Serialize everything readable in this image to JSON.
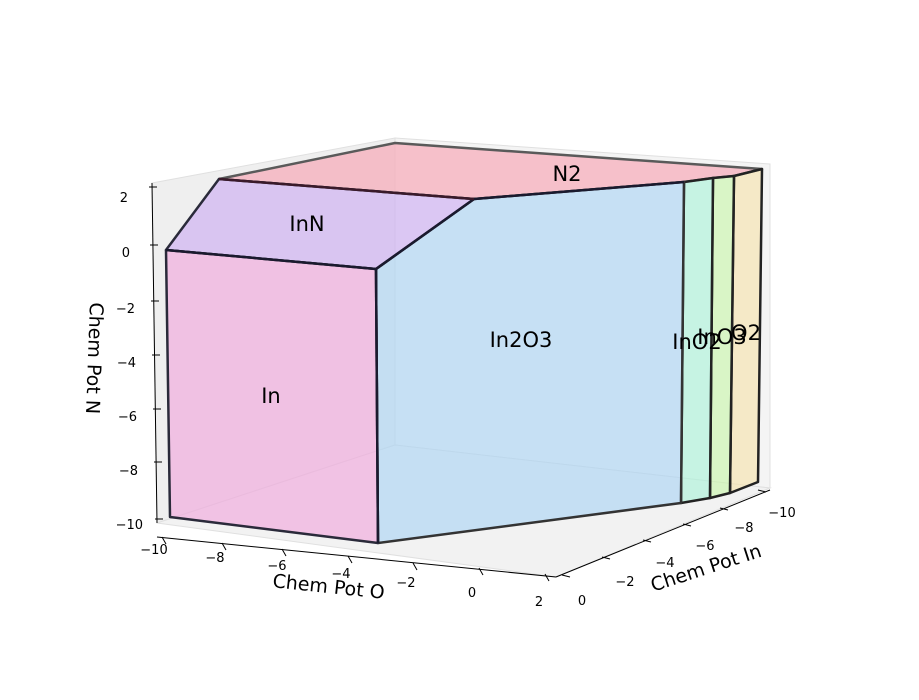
{
  "chart_data": {
    "type": "3d-polyhedra",
    "axes": {
      "x": {
        "label": "Chem Pot O",
        "ticks": [
          "−10",
          "−8",
          "−6",
          "−4",
          "−2",
          "0",
          "2"
        ]
      },
      "y": {
        "label": "Chem Pot In",
        "ticks": [
          "0",
          "−2",
          "−4",
          "−6",
          "−8",
          "−10"
        ]
      },
      "z": {
        "label": "Chem Pot N",
        "ticks": [
          "2",
          "0",
          "−2",
          "−4",
          "−6",
          "−8",
          "−10"
        ]
      }
    },
    "regions": [
      {
        "name": "In",
        "color": "#f0a8dc"
      },
      {
        "name": "InN",
        "color": "#c9a8f2"
      },
      {
        "name": "N2",
        "color": "#f7aab8"
      },
      {
        "name": "In2O3",
        "color": "#a9d3f3"
      },
      {
        "name": "InO2",
        "color": "#a7f2d7"
      },
      {
        "name": "InO3",
        "color": "#c6f5a6"
      },
      {
        "name": "O2",
        "color": "#f5e1a9"
      }
    ],
    "grid": true
  }
}
